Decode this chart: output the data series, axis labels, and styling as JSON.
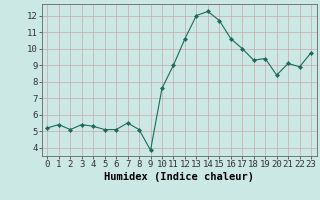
{
  "x": [
    0,
    1,
    2,
    3,
    4,
    5,
    6,
    7,
    8,
    9,
    10,
    11,
    12,
    13,
    14,
    15,
    16,
    17,
    18,
    19,
    20,
    21,
    22,
    23
  ],
  "y": [
    5.2,
    5.4,
    5.1,
    5.4,
    5.3,
    5.1,
    5.1,
    5.5,
    5.1,
    3.85,
    7.6,
    9.0,
    10.6,
    12.0,
    12.25,
    11.7,
    10.6,
    10.0,
    9.3,
    9.4,
    8.4,
    9.1,
    8.9,
    9.75
  ],
  "line_color": "#1a6b5a",
  "marker": "D",
  "marker_size": 2.0,
  "bg_color": "#cce8e4",
  "grid_color": "#b8d8d4",
  "xlabel": "Humidex (Indice chaleur)",
  "yticks": [
    4,
    5,
    6,
    7,
    8,
    9,
    10,
    11,
    12
  ],
  "ylim": [
    3.5,
    12.7
  ],
  "xlim": [
    -0.5,
    23.5
  ],
  "xlabel_fontsize": 7.5,
  "tick_fontsize": 6.5
}
